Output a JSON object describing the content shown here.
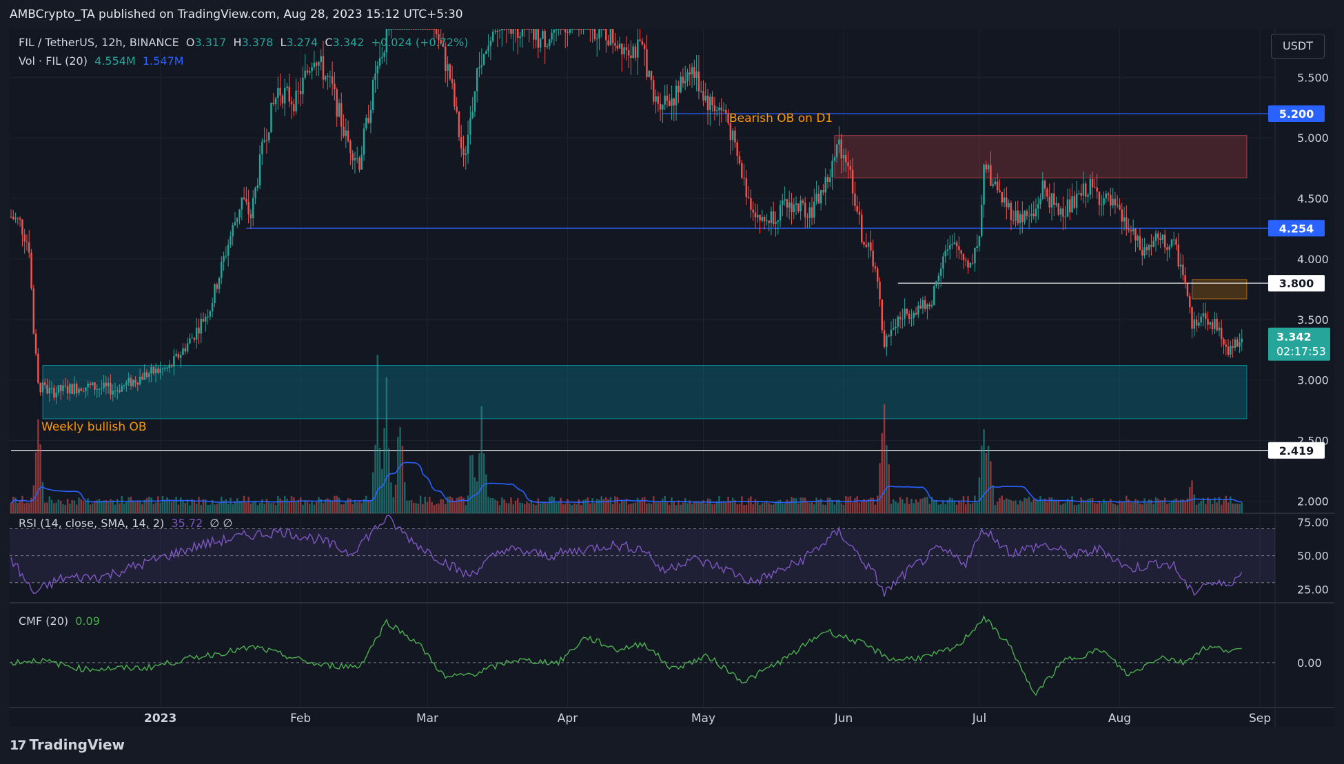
{
  "header": {
    "publisher": "AMBCrypto_TA published on TradingView.com, Aug 28, 2023 15:12 UTC+5:30"
  },
  "legend": {
    "symbol": "FIL / TetherUS, 12h, BINANCE",
    "o_label": "O",
    "o": "3.317",
    "h_label": "H",
    "h": "3.378",
    "l_label": "L",
    "l": "3.274",
    "c_label": "C",
    "c": "3.342",
    "change": "+0.024 (+0.72%)",
    "vol_label": "Vol · FIL (20)",
    "vol": "4.554M",
    "vol_ma": "1.547M"
  },
  "currency_button": "USDT",
  "rsi_legend": {
    "label": "RSI (14, close, SMA, 14, 2)",
    "value": "35.72",
    "extra": "∅ ∅"
  },
  "cmf_legend": {
    "label": "CMF (20)",
    "value": "0.09"
  },
  "footer": {
    "brand": "TradingView",
    "mark": "17"
  },
  "colors": {
    "bg": "#131722",
    "up": "#26a69a",
    "down": "#ef5350",
    "blue_level": "#2962ff",
    "rsi": "#7e57c2",
    "cmf": "#4caf50",
    "orange": "#ff9800"
  },
  "chart_data": [
    {
      "type": "candlestick",
      "title": "FIL / TetherUS, 12h, BINANCE",
      "x_ticks": [
        "2023",
        "Feb",
        "Mar",
        "Apr",
        "May",
        "Jun",
        "Jul",
        "Aug",
        "Sep"
      ],
      "y_ticks": [
        "2.000",
        "2.500",
        "3.000",
        "3.500",
        "4.000",
        "4.500",
        "5.000",
        "5.500"
      ],
      "ylim": [
        1.9,
        5.9
      ],
      "levels": [
        {
          "value": 5.2,
          "label": "5.200",
          "color": "#2962ff"
        },
        {
          "value": 4.254,
          "label": "4.254",
          "color": "#2962ff"
        },
        {
          "value": 3.8,
          "label": "3.800",
          "color": "#ffffff"
        },
        {
          "value": 2.419,
          "label": "2.419",
          "color": "#ffffff"
        }
      ],
      "last_price": {
        "value": "3.342",
        "countdown": "02:17:53"
      },
      "zones": [
        {
          "name": "Bearish OB on D1",
          "label": "Bearish OB on D1",
          "from": "2023-05-30",
          "ymin": 4.67,
          "ymax": 5.02,
          "color": "#ef5350"
        },
        {
          "name": "Weekly bullish OB",
          "label": "Weekly bullish OB",
          "from": "2022-12-06",
          "ymin": 2.68,
          "ymax": 3.12,
          "color": "#00bcd4"
        },
        {
          "name": "orange-ob",
          "label": "",
          "from": "2023-08-17",
          "ymin": 3.67,
          "ymax": 3.83,
          "color": "#ff9800"
        }
      ],
      "close_path": [
        [
          "2022-11-29",
          4.35
        ],
        [
          "2022-12-01",
          4.3
        ],
        [
          "2022-12-03",
          4.1
        ],
        [
          "2022-12-04",
          3.4
        ],
        [
          "2022-12-05",
          2.95
        ],
        [
          "2022-12-08",
          2.9
        ],
        [
          "2022-12-15",
          2.95
        ],
        [
          "2022-12-22",
          2.92
        ],
        [
          "2022-12-29",
          3.05
        ],
        [
          "2023-01-03",
          3.1
        ],
        [
          "2023-01-08",
          3.35
        ],
        [
          "2023-01-12",
          3.6
        ],
        [
          "2023-01-15",
          4.0
        ],
        [
          "2023-01-19",
          4.5
        ],
        [
          "2023-01-21",
          4.35
        ],
        [
          "2023-01-24",
          5.0
        ],
        [
          "2023-01-27",
          5.4
        ],
        [
          "2023-01-31",
          5.3
        ],
        [
          "2023-02-04",
          5.7
        ],
        [
          "2023-02-08",
          5.4
        ],
        [
          "2023-02-11",
          5.0
        ],
        [
          "2023-02-14",
          4.8
        ],
        [
          "2023-02-17",
          5.4
        ],
        [
          "2023-02-21",
          6.0
        ],
        [
          "2023-02-25",
          6.3
        ],
        [
          "2023-03-02",
          6.0
        ],
        [
          "2023-03-06",
          5.5
        ],
        [
          "2023-03-09",
          4.8
        ],
        [
          "2023-03-12",
          5.5
        ],
        [
          "2023-03-18",
          6.0
        ],
        [
          "2023-03-26",
          5.8
        ],
        [
          "2023-04-03",
          6.0
        ],
        [
          "2023-04-12",
          5.8
        ],
        [
          "2023-04-18",
          5.7
        ],
        [
          "2023-04-20",
          5.3
        ],
        [
          "2023-04-25",
          5.35
        ],
        [
          "2023-04-28",
          5.6
        ],
        [
          "2023-05-02",
          5.3
        ],
        [
          "2023-05-06",
          5.2
        ],
        [
          "2023-05-08",
          4.9
        ],
        [
          "2023-05-11",
          4.5
        ],
        [
          "2023-05-14",
          4.3
        ],
        [
          "2023-05-20",
          4.45
        ],
        [
          "2023-05-25",
          4.4
        ],
        [
          "2023-05-29",
          4.7
        ],
        [
          "2023-05-31",
          4.95
        ],
        [
          "2023-06-02",
          4.8
        ],
        [
          "2023-06-05",
          4.2
        ],
        [
          "2023-06-08",
          3.95
        ],
        [
          "2023-06-10",
          3.3
        ],
        [
          "2023-06-13",
          3.5
        ],
        [
          "2023-06-17",
          3.6
        ],
        [
          "2023-06-20",
          3.6
        ],
        [
          "2023-06-23",
          4.05
        ],
        [
          "2023-06-26",
          4.1
        ],
        [
          "2023-06-29",
          3.95
        ],
        [
          "2023-07-01",
          4.2
        ],
        [
          "2023-07-02",
          4.8
        ],
        [
          "2023-07-05",
          4.55
        ],
        [
          "2023-07-09",
          4.35
        ],
        [
          "2023-07-13",
          4.35
        ],
        [
          "2023-07-15",
          4.6
        ],
        [
          "2023-07-18",
          4.4
        ],
        [
          "2023-07-22",
          4.45
        ],
        [
          "2023-07-25",
          4.6
        ],
        [
          "2023-07-30",
          4.45
        ],
        [
          "2023-08-03",
          4.25
        ],
        [
          "2023-08-06",
          4.05
        ],
        [
          "2023-08-09",
          4.15
        ],
        [
          "2023-08-13",
          4.1
        ],
        [
          "2023-08-15",
          3.9
        ],
        [
          "2023-08-17",
          3.45
        ],
        [
          "2023-08-19",
          3.55
        ],
        [
          "2023-08-22",
          3.45
        ],
        [
          "2023-08-25",
          3.25
        ],
        [
          "2023-08-28",
          3.34
        ]
      ],
      "last_close": 3.342
    },
    {
      "type": "bar",
      "title": "Vol · FIL (20)",
      "series": [
        {
          "name": "Vol",
          "last": "4.554M"
        },
        {
          "name": "MA",
          "last": "1.547M"
        }
      ],
      "spikes": [
        [
          "2022-12-05",
          0.75
        ],
        [
          "2023-02-18",
          1.0
        ],
        [
          "2023-02-20",
          0.9
        ],
        [
          "2023-02-23",
          0.8
        ],
        [
          "2023-03-11",
          0.55
        ],
        [
          "2023-03-13",
          0.8
        ],
        [
          "2023-06-10",
          1.0
        ],
        [
          "2023-07-02",
          0.85
        ],
        [
          "2023-07-03",
          0.55
        ],
        [
          "2023-08-17",
          0.25
        ]
      ]
    },
    {
      "type": "line",
      "title": "RSI (14, close, SMA, 14, 2)",
      "last": "35.72",
      "y_ticks": [
        "25.00",
        "50.00",
        "75.00"
      ],
      "band": [
        30,
        70
      ],
      "ylim": [
        15,
        80
      ],
      "path": [
        [
          "2022-11-29",
          48
        ],
        [
          "2022-12-04",
          22
        ],
        [
          "2022-12-10",
          33
        ],
        [
          "2022-12-20",
          35
        ],
        [
          "2022-12-29",
          45
        ],
        [
          "2023-01-10",
          58
        ],
        [
          "2023-01-20",
          65
        ],
        [
          "2023-01-28",
          68
        ],
        [
          "2023-02-05",
          62
        ],
        [
          "2023-02-12",
          52
        ],
        [
          "2023-02-20",
          78
        ],
        [
          "2023-02-26",
          60
        ],
        [
          "2023-03-05",
          45
        ],
        [
          "2023-03-10",
          35
        ],
        [
          "2023-03-18",
          55
        ],
        [
          "2023-03-28",
          50
        ],
        [
          "2023-04-10",
          58
        ],
        [
          "2023-04-18",
          55
        ],
        [
          "2023-04-22",
          38
        ],
        [
          "2023-04-28",
          48
        ],
        [
          "2023-05-06",
          40
        ],
        [
          "2023-05-12",
          30
        ],
        [
          "2023-05-22",
          45
        ],
        [
          "2023-05-31",
          68
        ],
        [
          "2023-06-08",
          35
        ],
        [
          "2023-06-10",
          22
        ],
        [
          "2023-06-15",
          38
        ],
        [
          "2023-06-22",
          55
        ],
        [
          "2023-06-28",
          45
        ],
        [
          "2023-07-02",
          70
        ],
        [
          "2023-07-08",
          52
        ],
        [
          "2023-07-15",
          58
        ],
        [
          "2023-07-22",
          50
        ],
        [
          "2023-07-28",
          55
        ],
        [
          "2023-08-03",
          40
        ],
        [
          "2023-08-10",
          45
        ],
        [
          "2023-08-13",
          42
        ],
        [
          "2023-08-17",
          22
        ],
        [
          "2023-08-20",
          30
        ],
        [
          "2023-08-24",
          28
        ],
        [
          "2023-08-28",
          36
        ]
      ]
    },
    {
      "type": "line",
      "title": "CMF (20)",
      "last": "0.09",
      "y_ticks": [
        "0.00"
      ],
      "ylim": [
        -0.35,
        0.45
      ],
      "path": [
        [
          "2022-11-29",
          0.0
        ],
        [
          "2022-12-05",
          0.02
        ],
        [
          "2022-12-15",
          -0.05
        ],
        [
          "2022-12-29",
          -0.04
        ],
        [
          "2023-01-10",
          0.05
        ],
        [
          "2023-01-22",
          0.12
        ],
        [
          "2023-02-05",
          -0.02
        ],
        [
          "2023-02-14",
          -0.03
        ],
        [
          "2023-02-20",
          0.32
        ],
        [
          "2023-02-27",
          0.15
        ],
        [
          "2023-03-05",
          -0.12
        ],
        [
          "2023-03-12",
          -0.08
        ],
        [
          "2023-03-20",
          0.02
        ],
        [
          "2023-03-30",
          0.0
        ],
        [
          "2023-04-05",
          0.2
        ],
        [
          "2023-04-12",
          0.1
        ],
        [
          "2023-04-18",
          0.15
        ],
        [
          "2023-04-24",
          -0.05
        ],
        [
          "2023-05-02",
          0.05
        ],
        [
          "2023-05-10",
          -0.15
        ],
        [
          "2023-05-20",
          0.05
        ],
        [
          "2023-05-28",
          0.25
        ],
        [
          "2023-06-05",
          0.15
        ],
        [
          "2023-06-12",
          0.02
        ],
        [
          "2023-06-20",
          0.05
        ],
        [
          "2023-06-26",
          0.12
        ],
        [
          "2023-07-02",
          0.35
        ],
        [
          "2023-07-08",
          0.12
        ],
        [
          "2023-07-13",
          -0.25
        ],
        [
          "2023-07-20",
          0.02
        ],
        [
          "2023-07-28",
          0.1
        ],
        [
          "2023-08-03",
          -0.1
        ],
        [
          "2023-08-10",
          0.05
        ],
        [
          "2023-08-15",
          0.0
        ],
        [
          "2023-08-20",
          0.12
        ],
        [
          "2023-08-28",
          0.09
        ]
      ]
    }
  ]
}
